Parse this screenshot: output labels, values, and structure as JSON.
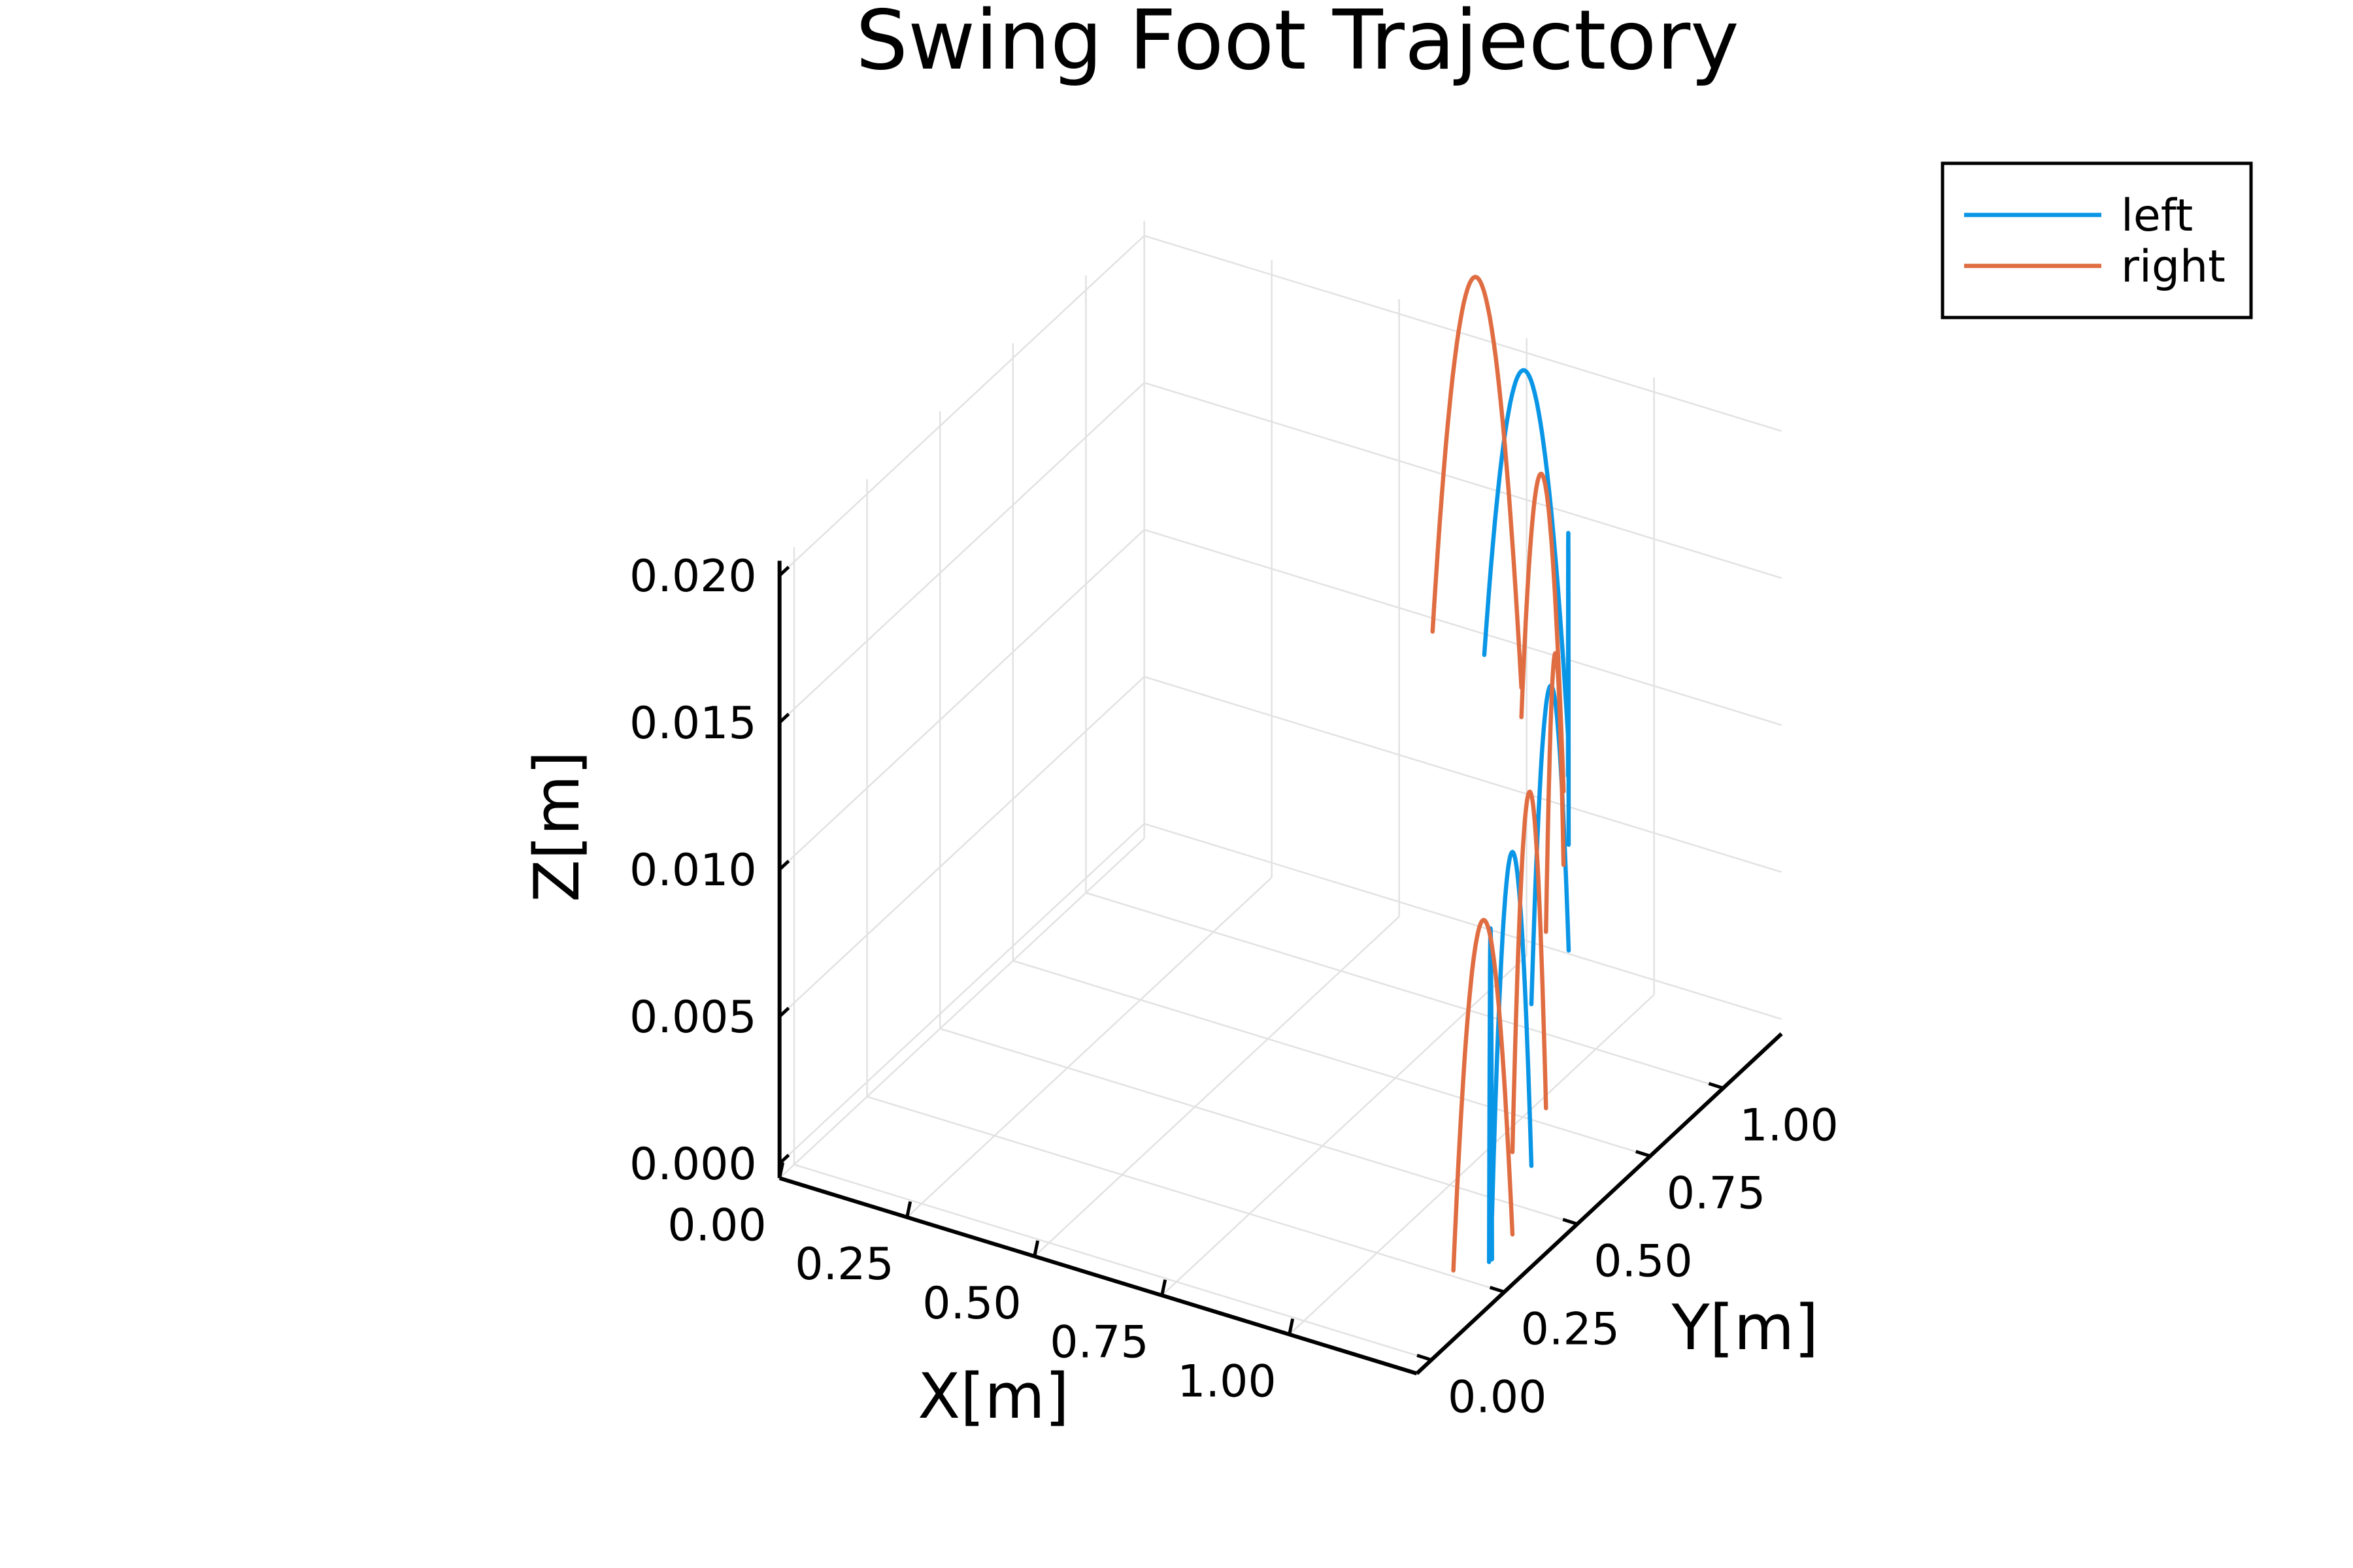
{
  "chart_data": {
    "type": "line",
    "projection": "3d",
    "title": "Swing Foot Trajectory",
    "xlabel": "X[m]",
    "ylabel": "Y[m]",
    "zlabel": "Z[m]",
    "x_ticks": [
      "0.00",
      "0.25",
      "0.50",
      "0.75",
      "1.00"
    ],
    "y_ticks": [
      "0.00",
      "0.25",
      "0.50",
      "0.75",
      "1.00"
    ],
    "z_ticks": [
      "0.000",
      "0.005",
      "0.010",
      "0.015",
      "0.020"
    ],
    "xlim": [
      0,
      1.25
    ],
    "ylim": [
      -0.05,
      1.2
    ],
    "zlim": [
      -0.0005,
      0.0205
    ],
    "grid": true,
    "legend_position": "top-right",
    "series": [
      {
        "name": "left",
        "color": "#0a96e6",
        "steps": [
          {
            "x0": 0.77,
            "x1": 1.02,
            "y0": 1.02,
            "y1": 0.87,
            "z_min": 0.0115,
            "z_max": 0.0225
          },
          {
            "x0": 1.02,
            "x1": 1.13,
            "y0": 0.87,
            "y1": 0.68,
            "z_min": 0.0101,
            "z_max": 0.0195
          },
          {
            "x0": 1.13,
            "x1": 1.16,
            "y0": 0.68,
            "y1": 0.5,
            "z_min": 0.0065,
            "z_max": 0.0164
          },
          {
            "x0": 1.16,
            "x1": 1.18,
            "y0": 0.5,
            "y1": 0.33,
            "z_min": 0.001,
            "z_max": 0.0125
          },
          {
            "x0": 1.18,
            "x1": 1.18,
            "y0": 0.33,
            "y1": 0.32,
            "z_min": -0.0005,
            "z_max": 0.0108
          }
        ]
      },
      {
        "name": "right",
        "color": "#e06d42",
        "steps": [
          {
            "x0": 0.68,
            "x1": 0.9,
            "y0": 1.0,
            "y1": 0.92,
            "z_min": 0.012,
            "z_max": 0.025
          },
          {
            "x0": 0.9,
            "x1": 1.08,
            "y0": 0.92,
            "y1": 0.75,
            "z_min": 0.011,
            "z_max": 0.0205
          },
          {
            "x0": 1.08,
            "x1": 1.16,
            "y0": 0.75,
            "y1": 0.55,
            "z_min": 0.0085,
            "z_max": 0.0168
          },
          {
            "x0": 1.16,
            "x1": 1.18,
            "y0": 0.55,
            "y1": 0.4,
            "z_min": 0.0025,
            "z_max": 0.014
          },
          {
            "x0": 1.18,
            "x1": 1.15,
            "y0": 0.4,
            "y1": 0.25,
            "z_min": -0.0003,
            "z_max": 0.011
          }
        ]
      }
    ]
  }
}
